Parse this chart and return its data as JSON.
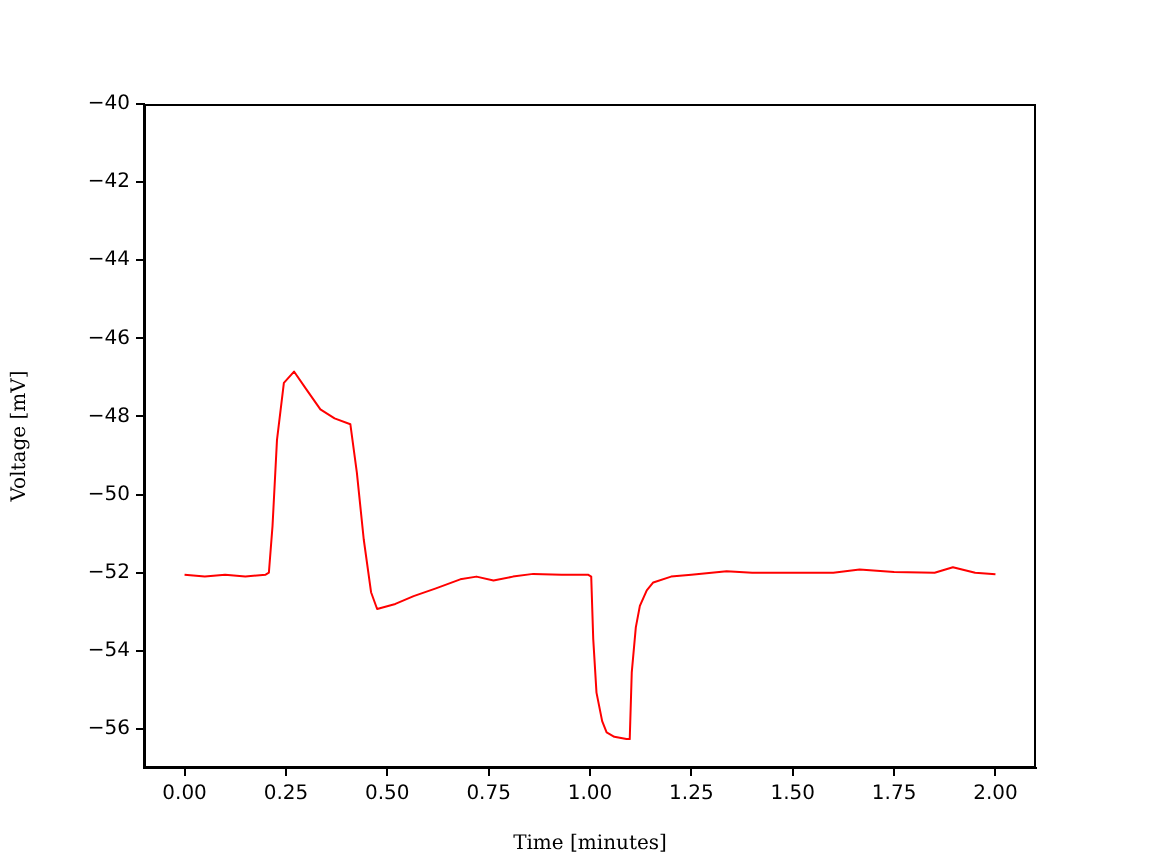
{
  "chart_data": {
    "type": "line",
    "xlabel": "Time [minutes]",
    "ylabel": "Voltage [mV]",
    "xlim": [
      -0.1,
      2.1
    ],
    "ylim": [
      -57,
      -40
    ],
    "xticks": [
      {
        "value": 0,
        "label": "0.00"
      },
      {
        "value": 0.25,
        "label": "0.25"
      },
      {
        "value": 0.5,
        "label": "0.50"
      },
      {
        "value": 0.75,
        "label": "0.75"
      },
      {
        "value": 1,
        "label": "1.00"
      },
      {
        "value": 1.25,
        "label": "1.25"
      },
      {
        "value": 1.5,
        "label": "1.50"
      },
      {
        "value": 1.75,
        "label": "1.75"
      },
      {
        "value": 2,
        "label": "2.00"
      }
    ],
    "yticks": [
      {
        "value": -56,
        "label": "−56"
      },
      {
        "value": -54,
        "label": "−54"
      },
      {
        "value": -52,
        "label": "−52"
      },
      {
        "value": -50,
        "label": "−50"
      },
      {
        "value": -48,
        "label": "−48"
      },
      {
        "value": -46,
        "label": "−46"
      },
      {
        "value": -44,
        "label": "−44"
      },
      {
        "value": -42,
        "label": "−42"
      },
      {
        "value": -40,
        "label": "−40"
      }
    ],
    "grid": false,
    "legend": false,
    "marker": "none",
    "line_style": "solid",
    "series": [
      {
        "color": "#ff0000",
        "x": [
          0,
          0.05,
          0.1,
          0.15,
          0.2,
          0.208,
          0.217,
          0.228,
          0.245,
          0.27,
          0.3,
          0.335,
          0.37,
          0.409,
          0.425,
          0.442,
          0.46,
          0.475,
          0.52,
          0.565,
          0.62,
          0.68,
          0.72,
          0.762,
          0.81,
          0.86,
          0.93,
          0.995,
          1.003,
          1.008,
          1.016,
          1.03,
          1.041,
          1.06,
          1.09,
          1.098,
          1.103,
          1.113,
          1.123,
          1.14,
          1.156,
          1.2,
          1.25,
          1.337,
          1.4,
          1.5,
          1.6,
          1.665,
          1.75,
          1.85,
          1.895,
          1.95,
          2.0
        ],
        "values": [
          -52.05,
          -52.1,
          -52.05,
          -52.1,
          -52.05,
          -52.0,
          -50.8,
          -48.6,
          -47.14,
          -46.85,
          -47.3,
          -47.82,
          -48.05,
          -48.2,
          -49.44,
          -51.15,
          -52.5,
          -52.93,
          -52.8,
          -52.6,
          -52.4,
          -52.17,
          -52.1,
          -52.2,
          -52.1,
          -52.03,
          -52.05,
          -52.05,
          -52.1,
          -53.7,
          -55.07,
          -55.8,
          -56.09,
          -56.2,
          -56.26,
          -56.26,
          -54.55,
          -53.4,
          -52.85,
          -52.45,
          -52.25,
          -52.1,
          -52.05,
          -51.96,
          -52.0,
          -52.0,
          -52.0,
          -51.92,
          -51.98,
          -52.0,
          -51.86,
          -52.0,
          -52.04
        ]
      }
    ]
  }
}
